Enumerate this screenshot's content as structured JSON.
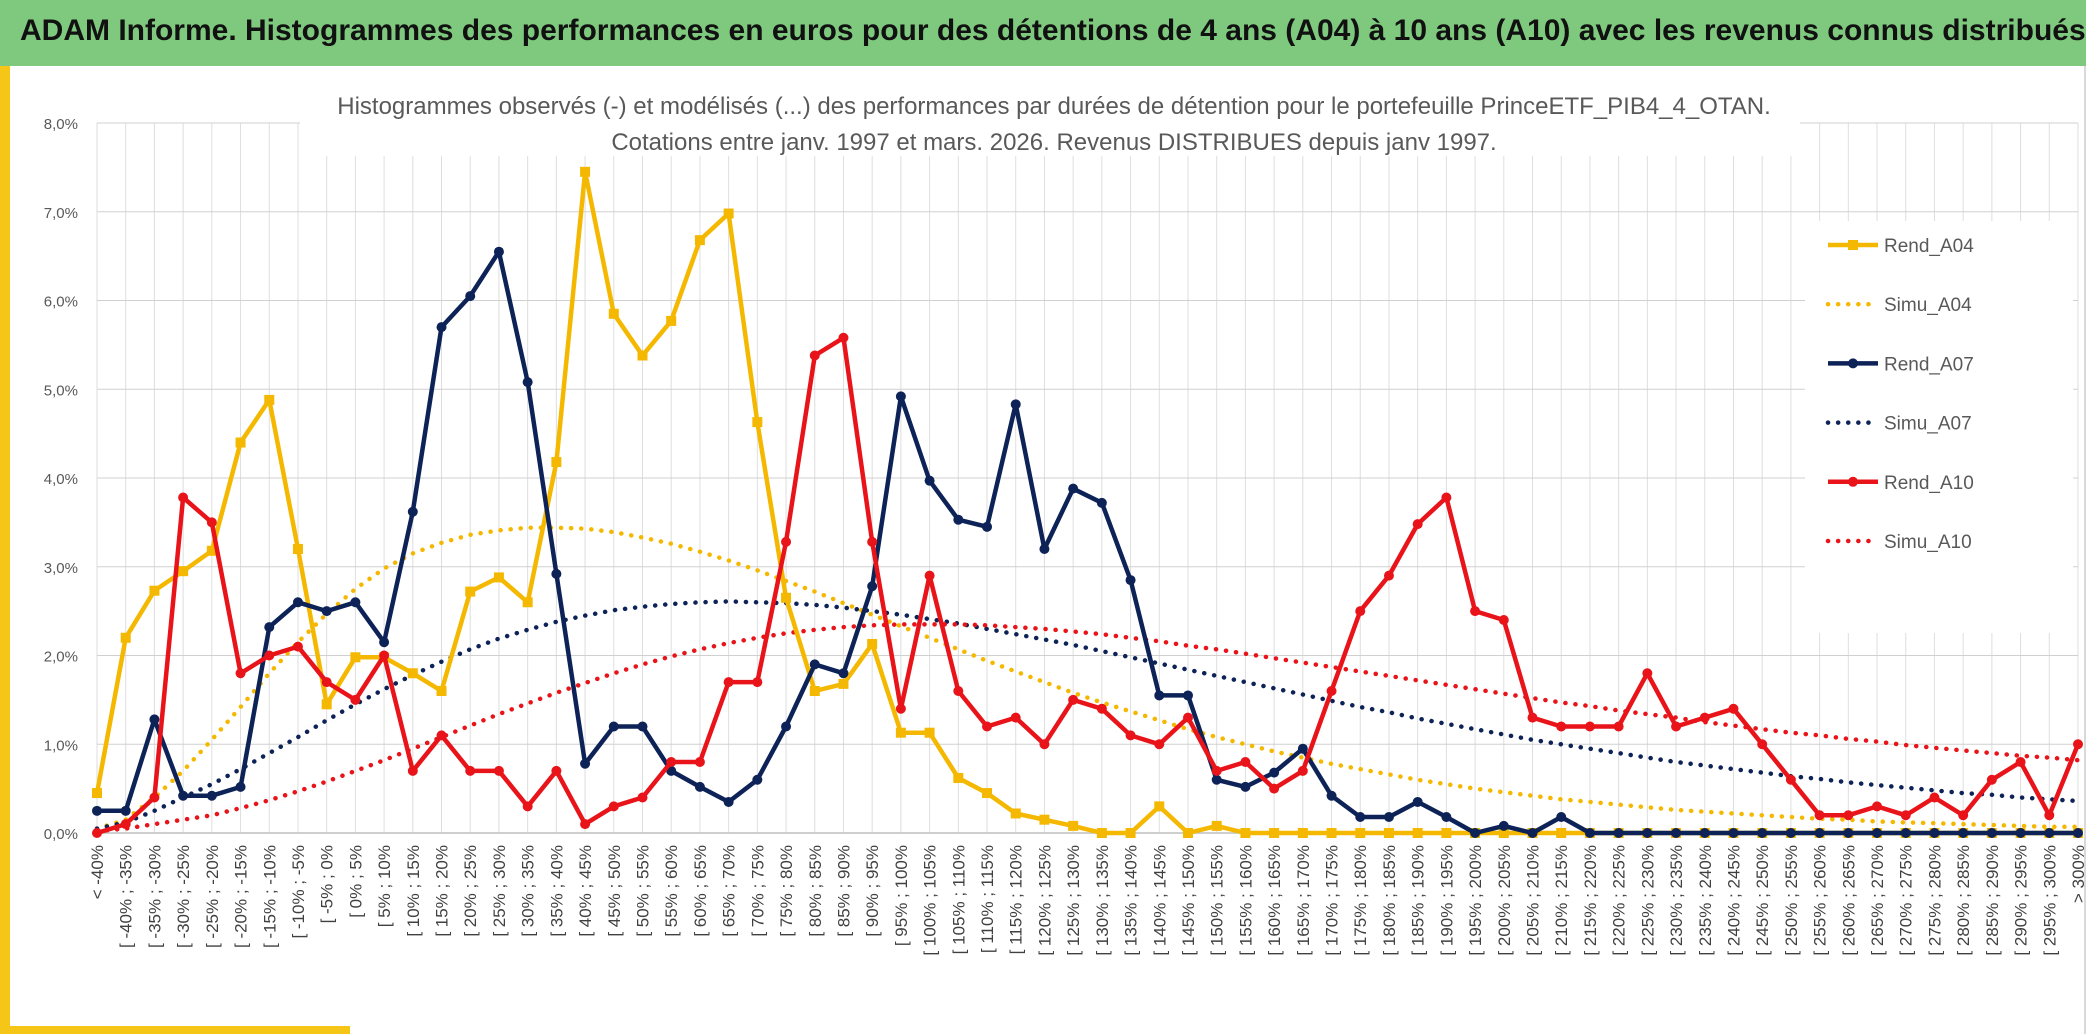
{
  "header": {
    "title": "ADAM Informe. Histogrammes des performances en euros pour des détentions de 4 ans (A04) à 10 ans (A10) avec les revenus connus distribués"
  },
  "chart_data": {
    "type": "line",
    "title_line1": "Histogrammes observés (-) et modélisés (...) des performances par durées de détention pour le portefeuille PrinceETF_PIB4_4_OTAN.",
    "title_line2": "Cotations entre janv. 1997 et mars. 2026. Revenus DISTRIBUES depuis janv 1997.",
    "ylim": [
      0,
      8
    ],
    "yticks": [
      "0,0%",
      "1,0%",
      "2,0%",
      "3,0%",
      "4,0%",
      "5,0%",
      "6,0%",
      "7,0%",
      "8,0%"
    ],
    "grid": true,
    "legend_position": "right",
    "categories": [
      "< -40%",
      "[ -40% ; -35%",
      "[ -35% ; -30%",
      "[ -30% ; -25%",
      "[ -25% ; -20%",
      "[ -20% ; -15%",
      "[ -15% ; -10%",
      "[ -10% ; -5%",
      "[ -5% ; 0%",
      "[ 0% ; 5%",
      "[ 5% ; 10%",
      "[ 10% ; 15%",
      "[ 15% ; 20%",
      "[ 20% ; 25%",
      "[ 25% ; 30%",
      "[ 30% ; 35%",
      "[ 35% ; 40%",
      "[ 40% ; 45%",
      "[ 45% ; 50%",
      "[ 50% ; 55%",
      "[ 55% ; 60%",
      "[ 60% ; 65%",
      "[ 65% ; 70%",
      "[ 70% ; 75%",
      "[ 75% ; 80%",
      "[ 80% ; 85%",
      "[ 85% ; 90%",
      "[ 90% ; 95%",
      "[ 95% ; 100%",
      "[ 100% ; 105%",
      "[ 105% ; 110%",
      "[ 110% ; 115%",
      "[ 115% ; 120%",
      "[ 120% ; 125%",
      "[ 125% ; 130%",
      "[ 130% ; 135%",
      "[ 135% ; 140%",
      "[ 140% ; 145%",
      "[ 145% ; 150%",
      "[ 150% ; 155%",
      "[ 155% ; 160%",
      "[ 160% ; 165%",
      "[ 165% ; 170%",
      "[ 170% ; 175%",
      "[ 175% ; 180%",
      "[ 180% ; 185%",
      "[ 185% ; 190%",
      "[ 190% ; 195%",
      "[ 195% ; 200%",
      "[ 200% ; 205%",
      "[ 205% ; 210%",
      "[ 210% ; 215%",
      "[ 215% ; 220%",
      "[ 220% ; 225%",
      "[ 225% ; 230%",
      "[ 230% ; 235%",
      "[ 235% ; 240%",
      "[ 240% ; 245%",
      "[ 245% ; 250%",
      "[ 250% ; 255%",
      "[ 255% ; 260%",
      "[ 260% ; 265%",
      "[ 265% ; 270%",
      "[ 270% ; 275%",
      "[ 275% ; 280%",
      "[ 280% ; 285%",
      "[ 285% ; 290%",
      "[ 290% ; 295%",
      "[ 295% ; 300%",
      "> 300%"
    ],
    "series": [
      {
        "name": "Rend_A04",
        "color": "#f5b800",
        "style": "solid",
        "marker": "square",
        "values": [
          0.45,
          2.2,
          2.73,
          2.95,
          3.18,
          4.4,
          4.88,
          3.2,
          1.45,
          1.98,
          1.98,
          1.8,
          1.6,
          2.72,
          2.88,
          2.6,
          4.18,
          7.45,
          5.85,
          5.38,
          5.77,
          6.68,
          6.98,
          4.63,
          2.65,
          1.6,
          1.68,
          2.13,
          1.13,
          1.13,
          0.62,
          0.45,
          0.22,
          0.15,
          0.08,
          0.0,
          0.0,
          0.3,
          0.0,
          0.08,
          0.0,
          0.0,
          0.0,
          0.0,
          0.0,
          0.0,
          0.0,
          0.0,
          0.0,
          0.0,
          0.0,
          0.0,
          0.0,
          0.0,
          0.0,
          0.0,
          0.0,
          0.0,
          0.0,
          0.0,
          0.0,
          0.0,
          0.0,
          0.0,
          0.0,
          0.0,
          0.0,
          0.0,
          0.0,
          0.0
        ]
      },
      {
        "name": "Simu_A04",
        "color": "#f5b800",
        "style": "dotted",
        "values": [
          0.05,
          0.15,
          0.4,
          0.7,
          1.05,
          1.42,
          1.8,
          2.15,
          2.47,
          2.75,
          2.98,
          3.15,
          3.27,
          3.36,
          3.41,
          3.44,
          3.44,
          3.43,
          3.39,
          3.33,
          3.26,
          3.17,
          3.07,
          2.96,
          2.84,
          2.72,
          2.59,
          2.46,
          2.33,
          2.2,
          2.07,
          1.94,
          1.82,
          1.7,
          1.58,
          1.47,
          1.37,
          1.27,
          1.17,
          1.08,
          1.0,
          0.92,
          0.85,
          0.78,
          0.72,
          0.66,
          0.6,
          0.55,
          0.5,
          0.46,
          0.42,
          0.38,
          0.35,
          0.32,
          0.29,
          0.26,
          0.24,
          0.22,
          0.2,
          0.18,
          0.16,
          0.15,
          0.13,
          0.12,
          0.11,
          0.1,
          0.09,
          0.08,
          0.07,
          0.07
        ]
      },
      {
        "name": "Rend_A07",
        "color": "#0d2357",
        "style": "solid",
        "marker": "circle",
        "values": [
          0.25,
          0.25,
          1.28,
          0.42,
          0.42,
          0.52,
          2.32,
          2.6,
          2.5,
          2.6,
          2.15,
          3.62,
          5.7,
          6.05,
          6.55,
          5.08,
          2.92,
          0.78,
          1.2,
          1.2,
          0.7,
          0.52,
          0.35,
          0.6,
          1.2,
          1.9,
          1.8,
          2.78,
          4.92,
          3.97,
          3.53,
          3.45,
          4.83,
          3.2,
          3.88,
          3.72,
          2.85,
          1.55,
          1.55,
          0.6,
          0.52,
          0.68,
          0.95,
          0.42,
          0.18,
          0.18,
          0.35,
          0.18,
          0.0,
          0.08,
          0.0,
          0.18,
          0.0,
          0.0,
          0.0,
          0.0,
          0.0,
          0.0,
          0.0,
          0.0,
          0.0,
          0.0,
          0.0,
          0.0,
          0.0,
          0.0,
          0.0,
          0.0,
          0.0,
          0.0
        ]
      },
      {
        "name": "Simu_A07",
        "color": "#0d2357",
        "style": "dotted",
        "values": [
          0.05,
          0.12,
          0.25,
          0.4,
          0.55,
          0.72,
          0.9,
          1.08,
          1.27,
          1.45,
          1.62,
          1.78,
          1.93,
          2.07,
          2.19,
          2.29,
          2.38,
          2.45,
          2.51,
          2.55,
          2.58,
          2.6,
          2.61,
          2.6,
          2.59,
          2.57,
          2.54,
          2.5,
          2.46,
          2.41,
          2.36,
          2.3,
          2.24,
          2.18,
          2.12,
          2.05,
          1.98,
          1.91,
          1.84,
          1.77,
          1.7,
          1.63,
          1.56,
          1.49,
          1.42,
          1.36,
          1.29,
          1.23,
          1.17,
          1.11,
          1.05,
          1.0,
          0.95,
          0.9,
          0.85,
          0.8,
          0.76,
          0.72,
          0.68,
          0.64,
          0.61,
          0.57,
          0.54,
          0.51,
          0.48,
          0.45,
          0.43,
          0.4,
          0.38,
          0.36
        ]
      },
      {
        "name": "Rend_A10",
        "color": "#e8141a",
        "style": "solid",
        "marker": "circle",
        "values": [
          0.0,
          0.1,
          0.4,
          3.78,
          3.5,
          1.8,
          2.0,
          2.1,
          1.7,
          1.5,
          2.0,
          0.7,
          1.1,
          0.7,
          0.7,
          0.3,
          0.7,
          0.1,
          0.3,
          0.4,
          0.8,
          0.8,
          1.7,
          1.7,
          3.28,
          5.38,
          5.58,
          3.28,
          1.4,
          2.9,
          1.6,
          1.2,
          1.3,
          1.0,
          1.5,
          1.4,
          1.1,
          1.0,
          1.3,
          0.7,
          0.8,
          0.5,
          0.7,
          1.6,
          2.5,
          2.9,
          3.48,
          3.78,
          2.5,
          2.4,
          1.3,
          1.2,
          1.2,
          1.2,
          1.8,
          1.2,
          1.3,
          1.4,
          1.0,
          0.6,
          0.2,
          0.2,
          0.3,
          0.2,
          0.4,
          0.2,
          0.6,
          0.8,
          0.2,
          1.0
        ]
      },
      {
        "name": "Simu_A10",
        "color": "#e8141a",
        "style": "dotted",
        "values": [
          0.02,
          0.05,
          0.1,
          0.15,
          0.2,
          0.28,
          0.37,
          0.47,
          0.58,
          0.7,
          0.82,
          0.95,
          1.08,
          1.21,
          1.34,
          1.46,
          1.58,
          1.69,
          1.8,
          1.9,
          1.99,
          2.07,
          2.14,
          2.2,
          2.25,
          2.29,
          2.32,
          2.34,
          2.35,
          2.35,
          2.35,
          2.34,
          2.32,
          2.3,
          2.27,
          2.24,
          2.2,
          2.16,
          2.11,
          2.07,
          2.02,
          1.97,
          1.92,
          1.87,
          1.82,
          1.77,
          1.72,
          1.67,
          1.62,
          1.57,
          1.52,
          1.47,
          1.43,
          1.38,
          1.34,
          1.3,
          1.25,
          1.21,
          1.17,
          1.13,
          1.1,
          1.06,
          1.03,
          0.99,
          0.96,
          0.93,
          0.9,
          0.87,
          0.85,
          0.82
        ]
      }
    ]
  }
}
